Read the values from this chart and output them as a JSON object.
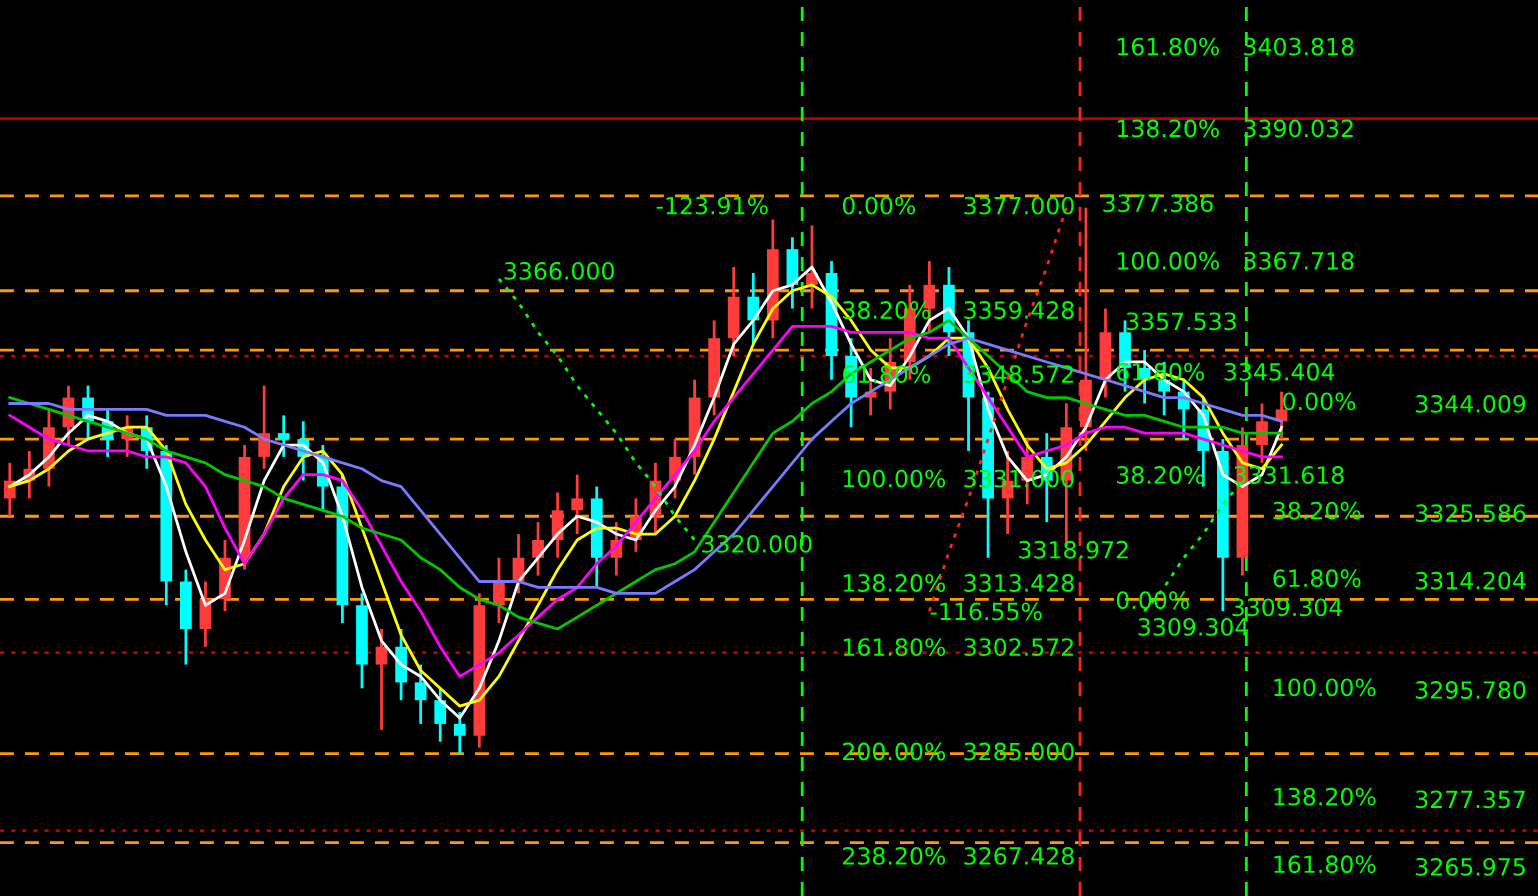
{
  "chart_data": {
    "type": "candlestick",
    "categories": [
      null,
      null,
      null,
      null,
      null,
      null,
      null,
      null,
      null,
      null,
      null,
      null,
      null,
      null,
      null,
      null,
      null,
      null,
      null,
      null,
      null,
      null,
      null,
      null,
      null,
      null,
      null,
      null,
      null,
      null,
      null,
      null,
      null,
      null,
      null,
      null,
      null,
      null,
      null,
      null,
      null,
      null,
      null,
      null,
      null,
      null,
      null,
      null,
      null,
      null,
      null,
      null,
      null,
      null,
      null,
      null,
      null,
      null,
      null,
      null,
      null,
      null,
      null,
      null,
      null,
      null
    ],
    "ohlc": [
      [
        3328,
        3334,
        3325,
        3331
      ],
      [
        3331,
        3336,
        3328,
        3333
      ],
      [
        3333,
        3343,
        3330,
        3340
      ],
      [
        3340,
        3347,
        3337,
        3345
      ],
      [
        3345,
        3347,
        3338,
        3341
      ],
      [
        3341,
        3343,
        3335,
        3338
      ],
      [
        3338,
        3342,
        3335,
        3340
      ],
      [
        3340,
        3342,
        3333,
        3336
      ],
      [
        3336,
        3337,
        3310,
        3314
      ],
      [
        3314,
        3316,
        3300,
        3306
      ],
      [
        3306,
        3314,
        3303,
        3311
      ],
      [
        3311,
        3321,
        3309,
        3318
      ],
      [
        3318,
        3337,
        3316,
        3335
      ],
      [
        3335,
        3347,
        3333,
        3339
      ],
      [
        3339,
        3342,
        3335,
        3338
      ],
      [
        3338,
        3341,
        3331,
        3335
      ],
      [
        3335,
        3337,
        3326,
        3330
      ],
      [
        3330,
        3332,
        3307,
        3310
      ],
      [
        3310,
        3312,
        3296,
        3300
      ],
      [
        3300,
        3306,
        3289,
        3303
      ],
      [
        3303,
        3306,
        3294,
        3297
      ],
      [
        3297,
        3300,
        3290,
        3294
      ],
      [
        3294,
        3296,
        3287,
        3290
      ],
      [
        3290,
        3292,
        3285,
        3288
      ],
      [
        3288,
        3312,
        3286,
        3310
      ],
      [
        3310,
        3318,
        3307,
        3314
      ],
      [
        3314,
        3322,
        3312,
        3318
      ],
      [
        3318,
        3324,
        3315,
        3321
      ],
      [
        3321,
        3329,
        3318,
        3326
      ],
      [
        3326,
        3332,
        3322,
        3328
      ],
      [
        3328,
        3330,
        3313,
        3318
      ],
      [
        3318,
        3324,
        3315,
        3321
      ],
      [
        3321,
        3328,
        3319,
        3325
      ],
      [
        3325,
        3334,
        3322,
        3331
      ],
      [
        3331,
        3338,
        3328,
        3335
      ],
      [
        3335,
        3348,
        3332,
        3345
      ],
      [
        3345,
        3358,
        3342,
        3355
      ],
      [
        3355,
        3367,
        3352,
        3362
      ],
      [
        3362,
        3366,
        3354,
        3358
      ],
      [
        3358,
        3375,
        3355,
        3370
      ],
      [
        3370,
        3372,
        3360,
        3364
      ],
      [
        3364,
        3374,
        3360,
        3366
      ],
      [
        3366,
        3368,
        3348,
        3352
      ],
      [
        3352,
        3355,
        3340,
        3345
      ],
      [
        3345,
        3350,
        3342,
        3346
      ],
      [
        3346,
        3355,
        3343,
        3351
      ],
      [
        3351,
        3364,
        3348,
        3360
      ],
      [
        3360,
        3368,
        3356,
        3364
      ],
      [
        3364,
        3367,
        3352,
        3356
      ],
      [
        3356,
        3358,
        3336,
        3345
      ],
      [
        3345,
        3346,
        3318,
        3328
      ],
      [
        3328,
        3336,
        3322,
        3331
      ],
      [
        3331,
        3338,
        3327,
        3335
      ],
      [
        3335,
        3339,
        3324,
        3331
      ],
      [
        3331,
        3344,
        3320,
        3340
      ],
      [
        3340,
        3377,
        3336,
        3348
      ],
      [
        3348,
        3360,
        3345,
        3356
      ],
      [
        3356,
        3358,
        3346,
        3350
      ],
      [
        3350,
        3353,
        3344,
        3348
      ],
      [
        3348,
        3351,
        3342,
        3346
      ],
      [
        3346,
        3348,
        3338,
        3343
      ],
      [
        3343,
        3345,
        3330,
        3336
      ],
      [
        3336,
        3338,
        3309,
        3318
      ],
      [
        3318,
        3340,
        3315,
        3337
      ],
      [
        3337,
        3344,
        3334,
        3341
      ],
      [
        3341,
        3346,
        3338,
        3343
      ]
    ],
    "series": [
      {
        "type": "line",
        "color": "#ffffff",
        "values": [
          3330,
          3332,
          3335,
          3339,
          3342,
          3341,
          3339,
          3338,
          3330,
          3319,
          3310,
          3312,
          3321,
          3331,
          3337,
          3337,
          3334,
          3325,
          3313,
          3304,
          3300,
          3298,
          3294,
          3291,
          3296,
          3304,
          3314,
          3318,
          3322,
          3325,
          3324,
          3322,
          3321,
          3326,
          3330,
          3337,
          3345,
          3354,
          3358,
          3363,
          3364,
          3367,
          3361,
          3354,
          3348,
          3347,
          3352,
          3358,
          3360,
          3355,
          3343,
          3335,
          3331,
          3332,
          3335,
          3340,
          3348,
          3351,
          3351,
          3348,
          3346,
          3342,
          3332,
          3330,
          3332,
          3340
        ]
      },
      {
        "type": "line",
        "color": "#ffff00",
        "values": [
          3330,
          3331,
          3333,
          3336,
          3338,
          3339,
          3340,
          3340,
          3336,
          3327,
          3321,
          3316,
          3317,
          3322,
          3330,
          3335,
          3336,
          3332,
          3323,
          3314,
          3305,
          3299,
          3296,
          3293,
          3294,
          3298,
          3304,
          3310,
          3316,
          3321,
          3323,
          3323,
          3322,
          3322,
          3325,
          3331,
          3338,
          3346,
          3354,
          3360,
          3363,
          3364,
          3362,
          3358,
          3353,
          3350,
          3350,
          3352,
          3355,
          3355,
          3350,
          3343,
          3337,
          3333,
          3334,
          3337,
          3341,
          3345,
          3348,
          3349,
          3348,
          3345,
          3339,
          3334,
          3333,
          3337
        ]
      },
      {
        "type": "line",
        "color": "#ff00ff",
        "values": [
          3342,
          3340,
          3338,
          3337,
          3336,
          3336,
          3336,
          3335,
          3335,
          3334,
          3330,
          3323,
          3317,
          3322,
          3328,
          3332,
          3332,
          3331,
          3326,
          3320,
          3314,
          3309,
          3303,
          3298,
          3300,
          3302,
          3305,
          3308,
          3311,
          3313,
          3317,
          3320,
          3324,
          3328,
          3332,
          3336,
          3341,
          3345,
          3349,
          3353,
          3357,
          3357,
          3357,
          3356,
          3356,
          3356,
          3356,
          3355,
          3355,
          3350,
          3345,
          3340,
          3335,
          3336,
          3337,
          3339,
          3340,
          3340,
          3339,
          3339,
          3339,
          3338,
          3337,
          3336,
          3335,
          3335
        ]
      },
      {
        "type": "line",
        "color": "#00c800",
        "values": [
          3345,
          3344,
          3343,
          3342,
          3341,
          3340,
          3339,
          3338,
          3336,
          3335,
          3334,
          3332,
          3331,
          3330,
          3328,
          3327,
          3326,
          3325,
          3323,
          3322,
          3321,
          3318,
          3316,
          3313,
          3311,
          3310,
          3308,
          3307,
          3306,
          3308,
          3310,
          3312,
          3314,
          3316,
          3317,
          3319,
          3324,
          3329,
          3334,
          3339,
          3341,
          3344,
          3346,
          3349,
          3351,
          3353,
          3355,
          3356,
          3358,
          3355,
          3352,
          3349,
          3346,
          3345,
          3345,
          3344,
          3343,
          3342,
          3342,
          3341,
          3340,
          3340,
          3340,
          3339,
          3339,
          3339
        ]
      },
      {
        "type": "line",
        "color": "#7b7bff",
        "values": [
          3344,
          3344,
          3344,
          3343,
          3343,
          3343,
          3343,
          3343,
          3342,
          3342,
          3342,
          3341,
          3340,
          3338,
          3337,
          3336,
          3335,
          3334,
          3333,
          3331,
          3330,
          3326,
          3322,
          3318,
          3314,
          3314,
          3314,
          3313,
          3313,
          3313,
          3313,
          3312,
          3312,
          3312,
          3314,
          3316,
          3319,
          3322,
          3326,
          3330,
          3334,
          3338,
          3341,
          3344,
          3346,
          3348,
          3350,
          3352,
          3354,
          3355,
          3354,
          3353,
          3352,
          3351,
          3350,
          3349,
          3348,
          3347,
          3346,
          3345,
          3345,
          3344,
          3343,
          3342,
          3342,
          3341
        ]
      },
      {
        "type": "line",
        "color": "#00ff00",
        "line_style": "dotted",
        "values": [
          null,
          null,
          null,
          null,
          null,
          null,
          null,
          null,
          null,
          null,
          null,
          null,
          null,
          null,
          null,
          null,
          null,
          null,
          null,
          null,
          null,
          null,
          null,
          null,
          null,
          3365,
          3361,
          3356,
          3352,
          3347,
          3343,
          3339,
          3334,
          3330,
          3325,
          3321,
          null,
          null,
          null,
          null,
          null,
          null,
          null,
          null,
          null,
          null,
          null,
          null,
          null,
          null,
          null,
          null,
          null,
          null,
          null,
          null,
          null,
          null,
          null,
          null,
          null,
          null,
          null,
          null,
          null,
          null
        ]
      },
      {
        "type": "line",
        "color": "#ff2020",
        "line_style": "dotted",
        "values": [
          null,
          null,
          null,
          null,
          null,
          null,
          null,
          null,
          null,
          null,
          null,
          null,
          null,
          null,
          null,
          null,
          null,
          null,
          null,
          null,
          null,
          null,
          null,
          null,
          null,
          null,
          null,
          null,
          null,
          null,
          null,
          null,
          null,
          null,
          null,
          null,
          null,
          null,
          null,
          null,
          null,
          null,
          null,
          null,
          null,
          null,
          null,
          3309,
          3319,
          3328,
          3338,
          3348,
          3358,
          3367,
          3377,
          null,
          null,
          null,
          null,
          null,
          null,
          null,
          null,
          null,
          null,
          null
        ]
      },
      {
        "type": "line",
        "color": "#00ff00",
        "line_style": "dotted",
        "values": [
          null,
          null,
          null,
          null,
          null,
          null,
          null,
          null,
          null,
          null,
          null,
          null,
          null,
          null,
          null,
          null,
          null,
          null,
          null,
          null,
          null,
          null,
          null,
          null,
          null,
          null,
          null,
          null,
          null,
          null,
          null,
          null,
          null,
          null,
          null,
          null,
          null,
          null,
          null,
          null,
          null,
          null,
          null,
          null,
          null,
          null,
          null,
          null,
          null,
          null,
          null,
          null,
          null,
          null,
          null,
          null,
          null,
          null,
          3309,
          3313,
          3318,
          3322,
          3327,
          3331,
          null,
          null
        ]
      }
    ],
    "ref_lines": [
      {
        "axis": "y",
        "value": 3379,
        "color": "#ff9900",
        "line_style": "dashed"
      },
      {
        "axis": "y",
        "value": 3363,
        "color": "#ff9900",
        "line_style": "dashed"
      },
      {
        "axis": "y",
        "value": 3353,
        "color": "#ff9900",
        "line_style": "dashed"
      },
      {
        "axis": "y",
        "value": 3338,
        "color": "#ff9900",
        "line_style": "dashed"
      },
      {
        "axis": "y",
        "value": 3325,
        "color": "#ff9900",
        "line_style": "dashed"
      },
      {
        "axis": "y",
        "value": 3311,
        "color": "#ff9900",
        "line_style": "dashed"
      },
      {
        "axis": "y",
        "value": 3285,
        "color": "#ff9900",
        "line_style": "dashed"
      },
      {
        "axis": "y",
        "value": 3270,
        "color": "#ff9900",
        "line_style": "dashed"
      },
      {
        "axis": "y",
        "value": 3392,
        "color": "#c00000",
        "line_style": "solid"
      },
      {
        "axis": "y",
        "value": 3352,
        "color": "#c00000",
        "line_style": "dotted"
      },
      {
        "axis": "y",
        "value": 3302,
        "color": "#c00000",
        "line_style": "dotted"
      },
      {
        "axis": "y",
        "value": 3272,
        "color": "#c00000",
        "line_style": "dotted"
      }
    ],
    "annotations": [
      "-123.91%",
      "3366.000",
      "3320.000",
      "0.00%",
      "3377.000",
      "38.20%",
      "3359.428",
      "61.80%",
      "3348.572",
      "100.00%",
      "3331.000",
      "138.20%",
      "3313.428",
      "161.80%",
      "3302.572",
      "200.00%",
      "3285.000",
      "238.20%",
      "3267.428",
      "3357.533",
      "0.00%",
      "38.20%",
      "61.80%",
      "100.00%",
      "138.20%",
      "161.80%",
      "3309.304",
      "161.80%",
      "3403.818",
      "138.20%",
      "3390.032",
      "3377.386",
      "100.00%",
      "3367.718",
      "61.80%",
      "3345.404",
      "38.20%",
      "3331.618",
      "3318.972",
      "-116.55%",
      "0.00%",
      "3309.304"
    ],
    "ylim": [
      3261,
      3412
    ],
    "yticks": [
      3344.009,
      3325.586,
      3314.204,
      {
        "value": 3295.78,
        "label": "3295.780"
      },
      3277.357,
      3265.975
    ]
  }
}
